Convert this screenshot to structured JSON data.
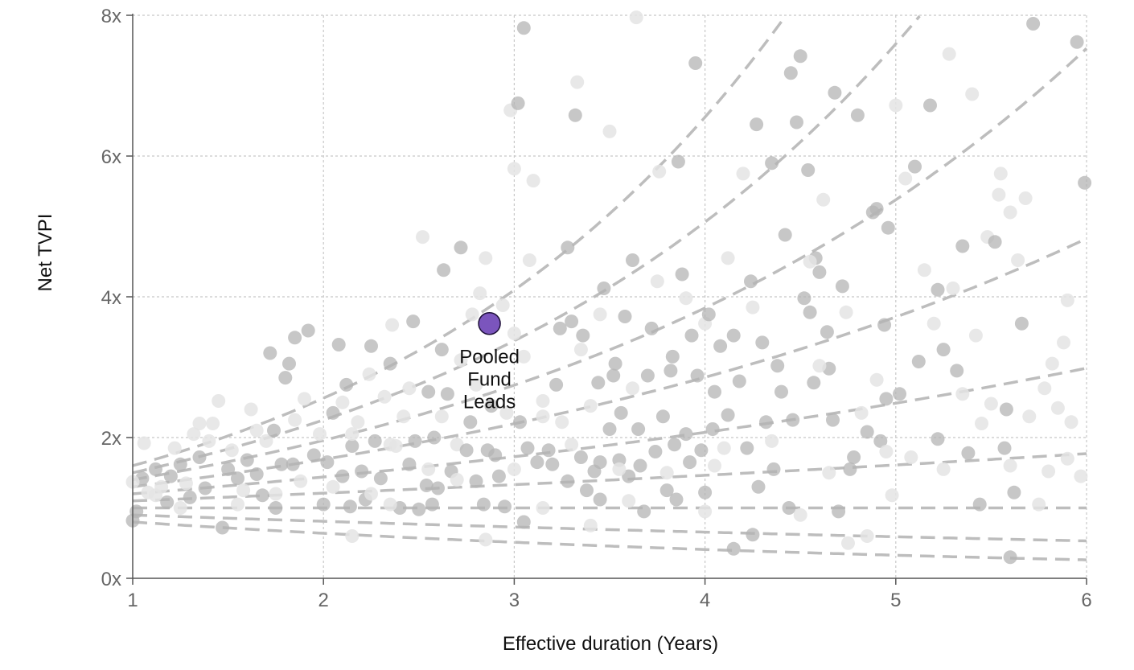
{
  "chart_data": {
    "type": "scatter",
    "title": "",
    "xlabel": "Effective duration (Years)",
    "ylabel": "Net TVPI",
    "xlim": [
      1,
      6
    ],
    "ylim": [
      0,
      8
    ],
    "x_ticks": [
      {
        "value": 1,
        "label": "1"
      },
      {
        "value": 2,
        "label": "2"
      },
      {
        "value": 3,
        "label": "3"
      },
      {
        "value": 4,
        "label": "4"
      },
      {
        "value": 5,
        "label": "5"
      },
      {
        "value": 6,
        "label": "6"
      }
    ],
    "y_ticks": [
      {
        "value": 0,
        "label": "0x"
      },
      {
        "value": 2,
        "label": "2x"
      },
      {
        "value": 4,
        "label": "4x"
      },
      {
        "value": 6,
        "label": "6x"
      },
      {
        "value": 8,
        "label": "8x"
      }
    ],
    "grid": true,
    "highlight": {
      "label_lines": [
        "Pooled",
        "Fund",
        "Leads"
      ],
      "x": 2.87,
      "y": 3.62,
      "color": "#7b55bd"
    },
    "reference_curves_irr": [
      -0.2,
      -0.1,
      0.0,
      0.1,
      0.2,
      0.3,
      0.4,
      0.5,
      0.6
    ],
    "point_colors": {
      "light": "#e4e4e4",
      "dark": "#b4b4b4",
      "curve": "#bdbdbd",
      "axis": "#555555"
    },
    "points": [
      [
        1.05,
        1.42,
        1
      ],
      [
        1.0,
        1.37,
        0
      ],
      [
        1.02,
        0.95,
        1
      ],
      [
        1.0,
        0.82,
        1
      ],
      [
        1.08,
        1.22,
        0
      ],
      [
        1.12,
        1.55,
        1
      ],
      [
        1.06,
        1.92,
        0
      ],
      [
        1.15,
        1.3,
        0
      ],
      [
        1.18,
        1.08,
        1
      ],
      [
        1.2,
        1.45,
        1
      ],
      [
        1.22,
        1.85,
        0
      ],
      [
        1.25,
        1.62,
        1
      ],
      [
        1.28,
        1.35,
        0
      ],
      [
        1.3,
        1.15,
        1
      ],
      [
        1.32,
        2.05,
        0
      ],
      [
        1.35,
        1.72,
        1
      ],
      [
        1.38,
        1.28,
        1
      ],
      [
        1.4,
        1.95,
        0
      ],
      [
        1.42,
        2.2,
        0
      ],
      [
        1.45,
        2.52,
        0
      ],
      [
        1.47,
        0.72,
        1
      ],
      [
        1.5,
        1.55,
        1
      ],
      [
        1.52,
        1.82,
        0
      ],
      [
        1.55,
        1.42,
        1
      ],
      [
        1.58,
        1.25,
        0
      ],
      [
        1.6,
        1.68,
        1
      ],
      [
        1.62,
        2.4,
        0
      ],
      [
        1.65,
        1.48,
        1
      ],
      [
        1.68,
        1.18,
        1
      ],
      [
        1.7,
        1.95,
        0
      ],
      [
        1.72,
        3.2,
        1
      ],
      [
        1.74,
        2.1,
        1
      ],
      [
        1.75,
        1.0,
        1
      ],
      [
        1.78,
        1.62,
        1
      ],
      [
        1.8,
        2.85,
        1
      ],
      [
        1.82,
        3.05,
        1
      ],
      [
        1.84,
        1.62,
        1
      ],
      [
        1.85,
        3.42,
        1
      ],
      [
        1.88,
        1.38,
        0
      ],
      [
        1.92,
        3.52,
        1
      ],
      [
        1.95,
        1.75,
        1
      ],
      [
        1.98,
        2.05,
        0
      ],
      [
        2.0,
        1.05,
        1
      ],
      [
        2.02,
        1.65,
        1
      ],
      [
        2.05,
        2.35,
        1
      ],
      [
        2.08,
        3.32,
        1
      ],
      [
        2.1,
        1.45,
        1
      ],
      [
        2.12,
        2.75,
        1
      ],
      [
        2.14,
        1.02,
        1
      ],
      [
        2.15,
        1.88,
        1
      ],
      [
        2.18,
        2.22,
        0
      ],
      [
        2.2,
        1.52,
        1
      ],
      [
        2.22,
        1.12,
        1
      ],
      [
        2.24,
        2.9,
        0
      ],
      [
        2.25,
        3.3,
        1
      ],
      [
        2.27,
        1.95,
        1
      ],
      [
        2.3,
        1.42,
        1
      ],
      [
        2.32,
        2.58,
        0
      ],
      [
        2.35,
        3.05,
        1
      ],
      [
        2.36,
        3.6,
        0
      ],
      [
        2.38,
        1.88,
        0
      ],
      [
        2.4,
        1.0,
        1
      ],
      [
        2.42,
        2.3,
        0
      ],
      [
        2.45,
        1.62,
        1
      ],
      [
        2.47,
        3.65,
        1
      ],
      [
        2.48,
        1.95,
        1
      ],
      [
        2.5,
        0.98,
        1
      ],
      [
        2.52,
        4.85,
        0
      ],
      [
        2.54,
        1.32,
        1
      ],
      [
        2.55,
        2.65,
        1
      ],
      [
        2.57,
        1.05,
        1
      ],
      [
        2.58,
        2.0,
        1
      ],
      [
        2.6,
        1.28,
        1
      ],
      [
        2.62,
        3.25,
        1
      ],
      [
        2.63,
        4.38,
        1
      ],
      [
        2.65,
        2.62,
        1
      ],
      [
        2.67,
        1.52,
        1
      ],
      [
        2.7,
        1.9,
        0
      ],
      [
        2.72,
        4.7,
        1
      ],
      [
        2.75,
        1.82,
        1
      ],
      [
        2.77,
        2.22,
        1
      ],
      [
        2.78,
        3.75,
        0
      ],
      [
        2.8,
        1.38,
        1
      ],
      [
        2.82,
        4.05,
        0
      ],
      [
        2.84,
        1.05,
        1
      ],
      [
        2.85,
        4.55,
        0
      ],
      [
        2.86,
        1.82,
        1
      ],
      [
        2.88,
        2.45,
        1
      ],
      [
        2.9,
        1.75,
        1
      ],
      [
        2.92,
        1.45,
        1
      ],
      [
        2.94,
        3.88,
        0
      ],
      [
        2.95,
        1.02,
        1
      ],
      [
        2.96,
        2.35,
        0
      ],
      [
        2.98,
        6.65,
        0
      ],
      [
        3.0,
        3.48,
        0
      ],
      [
        3.0,
        5.82,
        0
      ],
      [
        3.02,
        6.75,
        1
      ],
      [
        3.03,
        2.22,
        1
      ],
      [
        3.05,
        7.82,
        1
      ],
      [
        3.05,
        0.8,
        1
      ],
      [
        3.07,
        1.85,
        1
      ],
      [
        3.08,
        4.52,
        0
      ],
      [
        3.1,
        5.65,
        0
      ],
      [
        3.12,
        1.65,
        1
      ],
      [
        3.15,
        2.52,
        0
      ],
      [
        3.18,
        1.82,
        1
      ],
      [
        3.2,
        1.62,
        1
      ],
      [
        3.22,
        2.75,
        1
      ],
      [
        3.24,
        3.55,
        1
      ],
      [
        3.25,
        2.22,
        0
      ],
      [
        3.28,
        1.38,
        1
      ],
      [
        3.28,
        4.7,
        1
      ],
      [
        3.3,
        3.65,
        1
      ],
      [
        3.32,
        6.58,
        1
      ],
      [
        3.33,
        7.05,
        0
      ],
      [
        3.35,
        1.72,
        1
      ],
      [
        3.36,
        3.45,
        1
      ],
      [
        3.38,
        1.25,
        1
      ],
      [
        3.4,
        2.45,
        0
      ],
      [
        3.42,
        1.52,
        1
      ],
      [
        3.44,
        2.78,
        1
      ],
      [
        3.45,
        1.65,
        1
      ],
      [
        3.45,
        1.12,
        1
      ],
      [
        3.47,
        4.12,
        1
      ],
      [
        3.5,
        6.35,
        0
      ],
      [
        3.5,
        2.12,
        1
      ],
      [
        3.52,
        2.88,
        1
      ],
      [
        3.53,
        3.05,
        1
      ],
      [
        3.55,
        1.68,
        1
      ],
      [
        3.56,
        2.35,
        1
      ],
      [
        3.58,
        3.72,
        1
      ],
      [
        3.6,
        1.45,
        1
      ],
      [
        3.62,
        4.52,
        1
      ],
      [
        3.64,
        7.97,
        0
      ],
      [
        3.65,
        2.12,
        1
      ],
      [
        3.66,
        1.6,
        1
      ],
      [
        3.68,
        0.95,
        1
      ],
      [
        3.7,
        2.88,
        1
      ],
      [
        3.72,
        3.55,
        1
      ],
      [
        3.74,
        1.8,
        1
      ],
      [
        3.75,
        4.22,
        0
      ],
      [
        3.76,
        5.78,
        0
      ],
      [
        3.78,
        2.3,
        1
      ],
      [
        3.8,
        1.25,
        1
      ],
      [
        3.82,
        2.95,
        1
      ],
      [
        3.83,
        3.15,
        1
      ],
      [
        3.84,
        1.9,
        1
      ],
      [
        3.85,
        1.12,
        1
      ],
      [
        3.86,
        5.92,
        1
      ],
      [
        3.88,
        4.32,
        1
      ],
      [
        3.9,
        2.05,
        1
      ],
      [
        3.92,
        1.65,
        1
      ],
      [
        3.93,
        3.45,
        1
      ],
      [
        3.95,
        7.32,
        1
      ],
      [
        3.96,
        2.88,
        1
      ],
      [
        3.98,
        1.82,
        1
      ],
      [
        4.0,
        1.22,
        1
      ],
      [
        4.0,
        3.62,
        0
      ],
      [
        4.02,
        3.75,
        1
      ],
      [
        4.04,
        2.12,
        1
      ],
      [
        4.05,
        2.65,
        1
      ],
      [
        4.08,
        3.3,
        1
      ],
      [
        4.1,
        1.85,
        0
      ],
      [
        4.12,
        2.32,
        1
      ],
      [
        4.15,
        3.45,
        1
      ],
      [
        4.18,
        2.8,
        1
      ],
      [
        4.2,
        5.75,
        0
      ],
      [
        4.22,
        1.85,
        1
      ],
      [
        4.24,
        4.22,
        1
      ],
      [
        4.25,
        0.62,
        1
      ],
      [
        4.27,
        6.45,
        1
      ],
      [
        4.28,
        1.3,
        1
      ],
      [
        4.3,
        3.35,
        1
      ],
      [
        4.32,
        2.22,
        1
      ],
      [
        4.35,
        5.9,
        1
      ],
      [
        4.36,
        1.55,
        1
      ],
      [
        4.38,
        3.02,
        1
      ],
      [
        4.4,
        2.65,
        1
      ],
      [
        4.42,
        4.88,
        1
      ],
      [
        4.44,
        1.0,
        1
      ],
      [
        4.45,
        7.18,
        1
      ],
      [
        4.46,
        2.25,
        1
      ],
      [
        4.48,
        6.48,
        1
      ],
      [
        4.5,
        7.42,
        1
      ],
      [
        4.52,
        3.98,
        1
      ],
      [
        4.54,
        5.8,
        1
      ],
      [
        4.55,
        3.78,
        1
      ],
      [
        4.57,
        2.78,
        1
      ],
      [
        4.58,
        4.55,
        1
      ],
      [
        4.6,
        4.35,
        1
      ],
      [
        4.62,
        5.38,
        0
      ],
      [
        4.64,
        3.5,
        1
      ],
      [
        4.65,
        2.98,
        1
      ],
      [
        4.67,
        2.25,
        1
      ],
      [
        4.68,
        6.9,
        1
      ],
      [
        4.7,
        0.95,
        1
      ],
      [
        4.72,
        4.15,
        1
      ],
      [
        4.74,
        3.78,
        0
      ],
      [
        4.76,
        1.55,
        1
      ],
      [
        4.78,
        1.72,
        1
      ],
      [
        4.8,
        6.58,
        1
      ],
      [
        4.82,
        2.35,
        0
      ],
      [
        4.85,
        2.08,
        1
      ],
      [
        4.88,
        5.2,
        1
      ],
      [
        4.9,
        5.25,
        1
      ],
      [
        4.92,
        1.95,
        1
      ],
      [
        4.94,
        3.6,
        1
      ],
      [
        4.95,
        2.55,
        1
      ],
      [
        4.96,
        4.98,
        1
      ],
      [
        4.98,
        1.18,
        0
      ],
      [
        5.0,
        6.72,
        0
      ],
      [
        5.02,
        2.62,
        1
      ],
      [
        5.05,
        5.68,
        0
      ],
      [
        5.08,
        1.72,
        0
      ],
      [
        5.1,
        5.85,
        1
      ],
      [
        5.12,
        3.08,
        1
      ],
      [
        5.15,
        4.38,
        0
      ],
      [
        5.18,
        6.72,
        1
      ],
      [
        5.2,
        3.62,
        0
      ],
      [
        5.22,
        4.1,
        1
      ],
      [
        5.22,
        1.98,
        1
      ],
      [
        5.25,
        3.25,
        1
      ],
      [
        5.28,
        7.45,
        0
      ],
      [
        5.3,
        4.12,
        0
      ],
      [
        5.32,
        2.95,
        1
      ],
      [
        5.35,
        4.72,
        1
      ],
      [
        5.38,
        1.78,
        1
      ],
      [
        5.4,
        6.88,
        0
      ],
      [
        5.42,
        3.45,
        0
      ],
      [
        5.44,
        1.05,
        1
      ],
      [
        5.45,
        2.2,
        0
      ],
      [
        5.48,
        4.85,
        0
      ],
      [
        5.5,
        2.48,
        0
      ],
      [
        5.52,
        4.78,
        1
      ],
      [
        5.54,
        5.45,
        0
      ],
      [
        5.55,
        5.75,
        0
      ],
      [
        5.57,
        1.85,
        1
      ],
      [
        5.58,
        2.4,
        1
      ],
      [
        5.6,
        5.2,
        0
      ],
      [
        5.62,
        1.22,
        1
      ],
      [
        5.64,
        4.52,
        0
      ],
      [
        5.66,
        3.62,
        1
      ],
      [
        5.68,
        5.4,
        0
      ],
      [
        5.7,
        2.3,
        0
      ],
      [
        5.72,
        7.88,
        1
      ],
      [
        5.75,
        1.05,
        0
      ],
      [
        5.78,
        2.7,
        0
      ],
      [
        5.8,
        1.52,
        0
      ],
      [
        5.82,
        3.05,
        0
      ],
      [
        5.85,
        2.42,
        0
      ],
      [
        5.88,
        3.35,
        0
      ],
      [
        5.9,
        3.95,
        0
      ],
      [
        5.92,
        2.22,
        0
      ],
      [
        5.95,
        7.62,
        1
      ],
      [
        5.97,
        1.45,
        0
      ],
      [
        5.99,
        5.62,
        1
      ],
      [
        1.12,
        1.18,
        0
      ],
      [
        1.55,
        1.05,
        0
      ],
      [
        2.25,
        1.2,
        0
      ],
      [
        2.55,
        1.55,
        0
      ],
      [
        1.65,
        2.1,
        0
      ],
      [
        1.9,
        2.55,
        0
      ],
      [
        2.15,
        2.05,
        0
      ],
      [
        2.35,
        1.9,
        0
      ],
      [
        2.62,
        2.3,
        0
      ],
      [
        2.8,
        2.75,
        0
      ],
      [
        3.15,
        2.3,
        0
      ],
      [
        3.35,
        3.25,
        0
      ],
      [
        3.62,
        2.7,
        0
      ],
      [
        4.25,
        3.85,
        0
      ],
      [
        4.6,
        3.02,
        0
      ],
      [
        4.9,
        2.82,
        0
      ],
      [
        5.35,
        2.62,
        0
      ],
      [
        1.35,
        2.2,
        0
      ],
      [
        1.85,
        2.25,
        0
      ],
      [
        2.1,
        2.5,
        0
      ],
      [
        2.45,
        2.7,
        0
      ],
      [
        2.72,
        3.1,
        0
      ],
      [
        3.05,
        3.15,
        0
      ],
      [
        3.45,
        3.75,
        0
      ],
      [
        3.9,
        3.98,
        0
      ],
      [
        4.12,
        4.55,
        0
      ],
      [
        4.55,
        4.5,
        0
      ],
      [
        1.25,
        1.0,
        0
      ],
      [
        1.75,
        1.2,
        0
      ],
      [
        2.05,
        1.3,
        0
      ],
      [
        2.35,
        1.05,
        0
      ],
      [
        2.7,
        1.4,
        0
      ],
      [
        3.0,
        1.55,
        0
      ],
      [
        3.3,
        1.9,
        0
      ],
      [
        3.55,
        1.55,
        0
      ],
      [
        3.8,
        1.5,
        0
      ],
      [
        4.05,
        1.6,
        0
      ],
      [
        4.35,
        1.95,
        0
      ],
      [
        4.65,
        1.5,
        0
      ],
      [
        4.95,
        1.8,
        0
      ],
      [
        5.25,
        1.55,
        0
      ],
      [
        5.6,
        1.6,
        0
      ],
      [
        5.9,
        1.7,
        0
      ],
      [
        3.15,
        1.0,
        0
      ],
      [
        3.6,
        1.1,
        0
      ],
      [
        4.0,
        0.95,
        0
      ],
      [
        4.5,
        0.9,
        0
      ],
      [
        4.85,
        0.6,
        0
      ],
      [
        2.15,
        0.6,
        0
      ],
      [
        2.85,
        0.55,
        0
      ],
      [
        3.4,
        0.75,
        0
      ],
      [
        4.15,
        0.42,
        1
      ],
      [
        4.75,
        0.5,
        0
      ],
      [
        5.6,
        0.3,
        1
      ]
    ]
  }
}
